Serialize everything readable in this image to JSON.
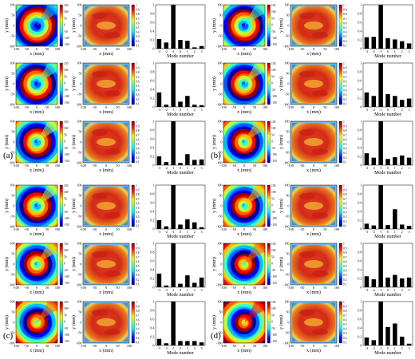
{
  "panels": [
    "(a)",
    "(b)",
    "(c)",
    "(d)"
  ],
  "axes": {
    "phase_xlabel": "x (mm)",
    "phase_ylabel": "y (mm)",
    "amp_xlabel": "x (mm)",
    "amp_ylabel": "y (mm)",
    "spatial_ticks": [
      "-100",
      "-50",
      "0",
      "50",
      "100"
    ],
    "phase_colorbar_ticks": [
      "150",
      "100",
      "50",
      "0",
      "-50",
      "-100",
      "-150"
    ],
    "amp_colorbar_ticks": [
      "1",
      "0.9",
      "0.8",
      "0.7",
      "0.6",
      "0.5",
      "0.4",
      "0.3",
      "0.2",
      "0.1"
    ],
    "hist_xlabel": "Mode number",
    "hist_yticks": [
      "1",
      "0.8",
      "0.6",
      "0.4",
      "0.2",
      "0"
    ],
    "hist_xticks": [
      "-3",
      "-2",
      "-1",
      "0",
      "1",
      "2",
      "3"
    ]
  },
  "colors": {
    "spiral": "jet phase colormap",
    "amplitude_main": "#d9301e",
    "bars": "#000000"
  },
  "chart_data": [
    {
      "panel": "(a)",
      "row": 1,
      "type": "bar",
      "categories": [
        "-3",
        "-2",
        "-1",
        "0",
        "1",
        "2",
        "3"
      ],
      "values": [
        0.22,
        0.14,
        1.0,
        0.2,
        0.18,
        0.03,
        0.06
      ],
      "ylim": [
        0,
        1
      ],
      "xlabel": "Mode number"
    },
    {
      "panel": "(a)",
      "row": 2,
      "type": "bar",
      "categories": [
        "-3",
        "-2",
        "-1",
        "0",
        "1",
        "2",
        "3"
      ],
      "values": [
        0.33,
        0.05,
        1.0,
        0.12,
        0.25,
        0.05,
        0.04
      ],
      "ylim": [
        0,
        1
      ],
      "xlabel": "Mode number"
    },
    {
      "panel": "(a)",
      "row": 3,
      "type": "bar",
      "categories": [
        "-3",
        "-2",
        "-1",
        "0",
        "1",
        "2",
        "3"
      ],
      "values": [
        0.2,
        0.07,
        1.0,
        0.05,
        0.25,
        0.12,
        0.13
      ],
      "ylim": [
        0,
        1
      ],
      "xlabel": "Mode number"
    },
    {
      "panel": "(b)",
      "row": 1,
      "type": "bar",
      "categories": [
        "-3",
        "-2",
        "-1",
        "0",
        "1",
        "2",
        "3"
      ],
      "values": [
        0.26,
        0.27,
        1.0,
        0.24,
        0.21,
        0.17,
        0.12
      ],
      "ylim": [
        0,
        1
      ],
      "xlabel": "Mode number"
    },
    {
      "panel": "(b)",
      "row": 2,
      "type": "bar",
      "categories": [
        "-3",
        "-2",
        "-1",
        "0",
        "1",
        "2",
        "3"
      ],
      "values": [
        0.33,
        0.25,
        1.0,
        0.29,
        0.25,
        0.16,
        0.19
      ],
      "ylim": [
        0,
        1
      ],
      "xlabel": "Mode number"
    },
    {
      "panel": "(b)",
      "row": 3,
      "type": "bar",
      "categories": [
        "-3",
        "-2",
        "-1",
        "0",
        "1",
        "2",
        "3"
      ],
      "values": [
        0.27,
        0.17,
        1.0,
        0.14,
        0.18,
        0.22,
        0.17
      ],
      "ylim": [
        0,
        1
      ],
      "xlabel": "Mode number"
    },
    {
      "panel": "(c)",
      "row": 1,
      "type": "bar",
      "categories": [
        "-3",
        "-2",
        "-1",
        "0",
        "1",
        "2",
        "3"
      ],
      "values": [
        0.2,
        0.06,
        1.0,
        0.1,
        0.22,
        0.15,
        0.04
      ],
      "ylim": [
        0,
        1
      ],
      "xlabel": "Mode number"
    },
    {
      "panel": "(c)",
      "row": 2,
      "type": "bar",
      "categories": [
        "-3",
        "-2",
        "-1",
        "0",
        "1",
        "2",
        "3"
      ],
      "values": [
        0.31,
        0.04,
        1.0,
        0.08,
        0.27,
        0.1,
        0.22
      ],
      "ylim": [
        0,
        1
      ],
      "xlabel": "Mode number"
    },
    {
      "panel": "(c)",
      "row": 3,
      "type": "bar",
      "categories": [
        "-3",
        "-2",
        "-1",
        "0",
        "1",
        "2",
        "3"
      ],
      "values": [
        0.15,
        0.05,
        1.0,
        0.1,
        0.1,
        0.1,
        0.07
      ],
      "ylim": [
        0,
        1
      ],
      "xlabel": "Mode number"
    },
    {
      "panel": "(d)",
      "row": 1,
      "type": "bar",
      "categories": [
        "-3",
        "-2",
        "-1",
        "0",
        "1",
        "2",
        "3"
      ],
      "values": [
        0.12,
        0.08,
        1.0,
        0.09,
        0.45,
        0.1,
        0.07
      ],
      "ylim": [
        0,
        1
      ],
      "xlabel": "Mode number"
    },
    {
      "panel": "(d)",
      "row": 2,
      "type": "bar",
      "categories": [
        "-3",
        "-2",
        "-1",
        "0",
        "1",
        "2",
        "3"
      ],
      "values": [
        0.25,
        0.18,
        1.0,
        0.22,
        0.28,
        0.2,
        0.22
      ],
      "ylim": [
        0,
        1
      ],
      "xlabel": "Mode number"
    },
    {
      "panel": "(d)",
      "row": 3,
      "type": "bar",
      "categories": [
        "-3",
        "-2",
        "-1",
        "0",
        "1",
        "2",
        "3"
      ],
      "values": [
        0.18,
        0.12,
        1.0,
        0.42,
        0.5,
        0.2,
        0.04
      ],
      "ylim": [
        0,
        1
      ],
      "xlabel": "Mode number"
    }
  ]
}
